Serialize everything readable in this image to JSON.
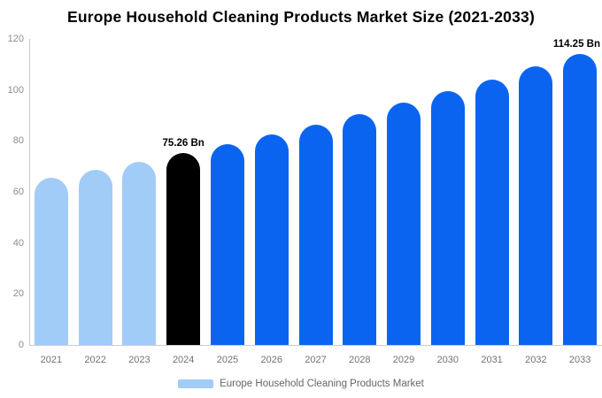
{
  "title": "Europe Household Cleaning Products Market Size (2021-2033)",
  "chart_data": {
    "type": "bar",
    "title": "Europe Household Cleaning Products Market Size (2021-2033)",
    "categories": [
      "2021",
      "2022",
      "2023",
      "2024",
      "2025",
      "2026",
      "2027",
      "2028",
      "2029",
      "2030",
      "2031",
      "2032",
      "2033"
    ],
    "series": [
      {
        "name": "Europe Household Cleaning Products Market",
        "values": [
          65.5,
          68.6,
          71.9,
          75.26,
          78.8,
          82.6,
          86.5,
          90.6,
          94.9,
          99.4,
          104.1,
          109.1,
          114.25
        ]
      }
    ],
    "bar_colors": [
      "#a2ccf8",
      "#a2ccf8",
      "#a2ccf8",
      "#000000",
      "#0a64f0",
      "#0a64f0",
      "#0a64f0",
      "#0a64f0",
      "#0a64f0",
      "#0a64f0",
      "#0a64f0",
      "#0a64f0",
      "#0a64f0"
    ],
    "ylim": [
      0,
      120
    ],
    "yticks": [
      0,
      20,
      40,
      60,
      80,
      100,
      120
    ],
    "grid": false,
    "legend_position": "bottom",
    "data_labels": [
      {
        "category": "2024",
        "text": "75.26 Bn"
      },
      {
        "category": "2033",
        "text": "114.25 Bn"
      }
    ]
  },
  "legend": {
    "label": "Europe Household Cleaning Products Market",
    "swatch_color": "#a2ccf8"
  },
  "colors": {
    "past_bars": "#a2ccf8",
    "highlight_bar": "#000000",
    "forecast_bars": "#0a64f0",
    "axis_line": "#cccccc",
    "tick_text": "#8c8c8c",
    "category_text": "#737373",
    "value_label_text": "#000000",
    "legend_text": "#666666",
    "title_text": "#000000",
    "background": "#ffffff"
  }
}
